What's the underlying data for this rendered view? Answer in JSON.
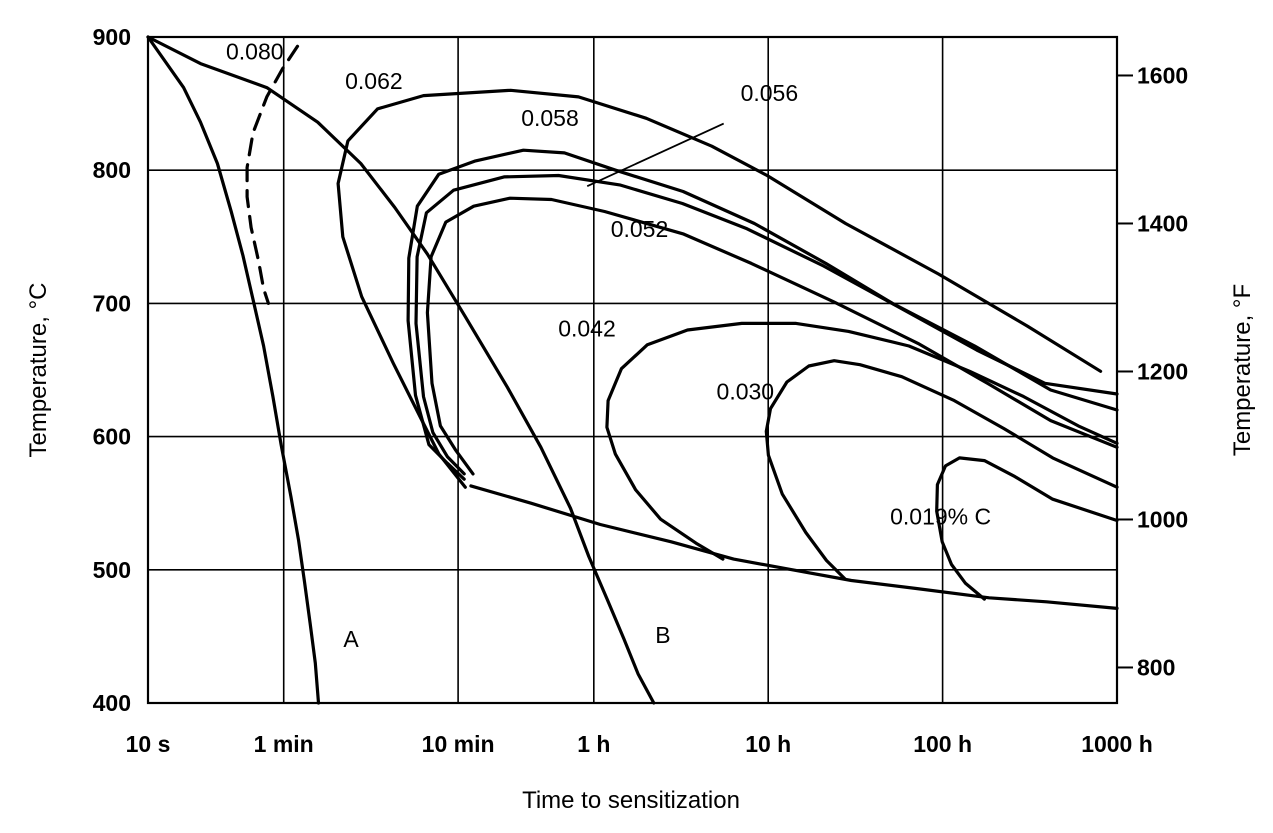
{
  "chart_data": {
    "type": "line",
    "title": "",
    "xlabel": "Time to sensitization",
    "ylabel": "Temperature, °C",
    "y2label": "Temperature, °F",
    "x_scale": "log",
    "x_ticks": [
      {
        "label": "10 s",
        "seconds": 10
      },
      {
        "label": "1 min",
        "seconds": 60
      },
      {
        "label": "10 min",
        "seconds": 600
      },
      {
        "label": "1 h",
        "seconds": 3600
      },
      {
        "label": "10 h",
        "seconds": 36000
      },
      {
        "label": "100 h",
        "seconds": 360000
      },
      {
        "label": "1000 h",
        "seconds": 3600000
      }
    ],
    "xlim_seconds": [
      10,
      3600000
    ],
    "y_ticks": [
      400,
      500,
      600,
      700,
      800,
      900
    ],
    "y_tick_labels": [
      "400",
      "500",
      "600",
      "700",
      "800",
      "900"
    ],
    "ylim": [
      400,
      900
    ],
    "y2_ticks": [
      800,
      1000,
      1200,
      1400,
      1600
    ],
    "y2_tick_labels": [
      "800",
      "1000",
      "1200",
      "1400",
      "1600"
    ],
    "grid": true,
    "legend": "none",
    "series": [
      {
        "label": "0.080",
        "points": [
          [
            10,
            900
          ],
          [
            20,
            880
          ],
          [
            48,
            862
          ],
          [
            94,
            836
          ],
          [
            166,
            805
          ],
          [
            260,
            772
          ],
          [
            400,
            737
          ],
          [
            660,
            690
          ],
          [
            1150,
            637
          ],
          [
            1790,
            592
          ],
          [
            2650,
            546
          ],
          [
            3370,
            510
          ],
          [
            4290,
            478
          ],
          [
            5360,
            448
          ],
          [
            6450,
            422
          ],
          [
            7950,
            400
          ]
        ]
      },
      {
        "label": "0.062",
        "points": [
          [
            10,
            900
          ],
          [
            16,
            862
          ],
          [
            20,
            836
          ],
          [
            25,
            805
          ],
          [
            30,
            769
          ],
          [
            35,
            736
          ],
          [
            40,
            703
          ],
          [
            46,
            668
          ],
          [
            52,
            630
          ],
          [
            58,
            594
          ],
          [
            66,
            555
          ],
          [
            73,
            522
          ],
          [
            79,
            491
          ],
          [
            85,
            460
          ],
          [
            91,
            430
          ],
          [
            95,
            400
          ]
        ]
      },
      {
        "label": "0.062",
        "dashed": true,
        "points": [
          [
            72,
            893
          ],
          [
            59,
            876
          ],
          [
            48,
            855
          ],
          [
            40,
            828
          ],
          [
            37,
            802
          ],
          [
            37,
            780
          ],
          [
            39,
            757
          ],
          [
            43,
            732
          ],
          [
            46,
            711
          ],
          [
            49,
            700
          ]
        ]
      },
      {
        "label": "0.058",
        "points": [
          [
            660,
            562
          ],
          [
            465,
            587
          ],
          [
            363,
            615
          ],
          [
            255,
            655
          ],
          [
            168,
            705
          ],
          [
            131,
            750
          ],
          [
            123,
            790
          ],
          [
            140,
            822
          ],
          [
            207,
            846
          ],
          [
            380,
            856
          ],
          [
            1200,
            860
          ],
          [
            2940,
            855
          ],
          [
            7200,
            839
          ],
          [
            17100,
            818
          ],
          [
            35500,
            796
          ],
          [
            100000,
            760
          ],
          [
            342000,
            722
          ],
          [
            1100000,
            683
          ],
          [
            2900000,
            649
          ]
        ]
      },
      {
        "label": "0.056",
        "points": [
          [
            650,
            568
          ],
          [
            520,
            580
          ],
          [
            408,
            594
          ],
          [
            342,
            631
          ],
          [
            310,
            687
          ],
          [
            313,
            734
          ],
          [
            350,
            773
          ],
          [
            465,
            797
          ],
          [
            755,
            807
          ],
          [
            1420,
            815
          ],
          [
            2440,
            813
          ],
          [
            4800,
            800
          ],
          [
            11700,
            784
          ],
          [
            30000,
            760
          ],
          [
            77000,
            730
          ],
          [
            186000,
            700
          ],
          [
            550000,
            668
          ],
          [
            1500000,
            635
          ],
          [
            3600000,
            620
          ]
        ]
      },
      {
        "label": "0.052",
        "points": [
          [
            650,
            572
          ],
          [
            520,
            585
          ],
          [
            430,
            603
          ],
          [
            380,
            630
          ],
          [
            344,
            685
          ],
          [
            349,
            735
          ],
          [
            395,
            768
          ],
          [
            565,
            785
          ],
          [
            1100,
            795
          ],
          [
            2260,
            796
          ],
          [
            5070,
            789
          ],
          [
            11600,
            775
          ],
          [
            27200,
            756
          ],
          [
            75000,
            728
          ],
          [
            197000,
            698
          ],
          [
            565000,
            665
          ],
          [
            1390000,
            640
          ],
          [
            3600000,
            632
          ]
        ]
      },
      {
        "label": "0.052",
        "points": [
          [
            730,
            572
          ],
          [
            580,
            590
          ],
          [
            475,
            608
          ],
          [
            425,
            640
          ],
          [
            400,
            693
          ],
          [
            420,
            735
          ],
          [
            510,
            761
          ],
          [
            737,
            773
          ],
          [
            1190,
            779
          ],
          [
            2060,
            778
          ],
          [
            4150,
            769
          ],
          [
            11800,
            752
          ],
          [
            28800,
            730
          ],
          [
            86000,
            701
          ],
          [
            260000,
            670
          ],
          [
            650000,
            640
          ],
          [
            1500000,
            612
          ],
          [
            3600000,
            592
          ]
        ]
      },
      {
        "label": "0.042",
        "points": [
          [
            19800,
            508
          ],
          [
            13900,
            520
          ],
          [
            8700,
            538
          ],
          [
            6260,
            560
          ],
          [
            4780,
            587
          ],
          [
            4280,
            607
          ],
          [
            4350,
            627
          ],
          [
            5180,
            651
          ],
          [
            7300,
            669
          ],
          [
            12400,
            680
          ],
          [
            25400,
            685
          ],
          [
            52000,
            685
          ],
          [
            104000,
            679
          ],
          [
            231000,
            668
          ],
          [
            515000,
            649
          ],
          [
            1050000,
            630
          ],
          [
            2160000,
            608
          ],
          [
            3600000,
            595
          ]
        ]
      },
      {
        "label": "0.030",
        "points": [
          [
            99500,
            493
          ],
          [
            77700,
            507
          ],
          [
            59100,
            528
          ],
          [
            43300,
            557
          ],
          [
            36100,
            586
          ],
          [
            35100,
            604
          ],
          [
            37100,
            621
          ],
          [
            46100,
            641
          ],
          [
            61500,
            653
          ],
          [
            86000,
            657
          ],
          [
            121000,
            654
          ],
          [
            210000,
            645
          ],
          [
            420000,
            627
          ],
          [
            810000,
            606
          ],
          [
            1540000,
            584
          ],
          [
            3600000,
            562
          ]
        ]
      },
      {
        "label": "0.019% C",
        "points": [
          [
            625000,
            478
          ],
          [
            486000,
            490
          ],
          [
            405000,
            504
          ],
          [
            358000,
            521
          ],
          [
            333000,
            544
          ],
          [
            336000,
            564
          ],
          [
            374000,
            578
          ],
          [
            450000,
            584
          ],
          [
            625000,
            582
          ],
          [
            935000,
            570
          ],
          [
            1540000,
            553
          ],
          [
            3600000,
            537
          ]
        ]
      },
      {
        "label": "",
        "points": [
          [
            710,
            563
          ],
          [
            1570,
            550
          ],
          [
            3920,
            534
          ],
          [
            10000,
            521
          ],
          [
            22800,
            508
          ],
          [
            49600,
            500
          ],
          [
            108000,
            492
          ],
          [
            251000,
            486
          ],
          [
            665000,
            479
          ],
          [
            1420000,
            476
          ],
          [
            3600000,
            471
          ]
        ]
      }
    ],
    "annotations": [
      {
        "text": "0.080",
        "x": 28,
        "y": 883
      },
      {
        "text": "0.062",
        "x": 135,
        "y": 861
      },
      {
        "text": "0.058",
        "x": 1380,
        "y": 833
      },
      {
        "text": "0.056",
        "x": 25000,
        "y": 852
      },
      {
        "text": "0.052",
        "x": 4500,
        "y": 750
      },
      {
        "text": "0.042",
        "x": 2250,
        "y": 675
      },
      {
        "text": "0.030",
        "x": 18200,
        "y": 628
      },
      {
        "text": "0.019% C",
        "x": 180000,
        "y": 534
      },
      {
        "text": "A",
        "x": 132,
        "y": 442
      },
      {
        "text": "B",
        "x": 8100,
        "y": 445
      }
    ],
    "leaders": [
      {
        "label": "0.056",
        "from": [
          20000,
          835
        ],
        "to": [
          3300,
          788
        ]
      }
    ]
  }
}
